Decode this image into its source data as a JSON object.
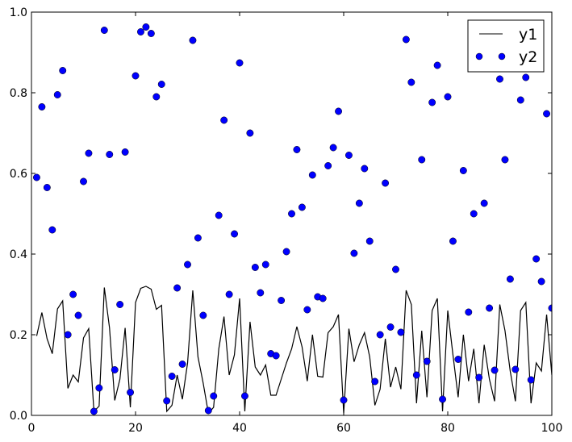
{
  "chart_data": {
    "type": "line+scatter",
    "xlim": [
      0,
      100
    ],
    "ylim": [
      0.0,
      1.0
    ],
    "x_ticks": [
      "0",
      "20",
      "40",
      "60",
      "80",
      "100"
    ],
    "y_ticks": [
      "0.0",
      "0.2",
      "0.4",
      "0.6",
      "0.8",
      "1.0"
    ],
    "grid": false,
    "legend_position": "top-right",
    "colors": {
      "y1": "#000000",
      "y2": "#0000ff"
    },
    "x": [
      1,
      2,
      3,
      4,
      5,
      6,
      7,
      8,
      9,
      10,
      11,
      12,
      13,
      14,
      15,
      16,
      17,
      18,
      19,
      20,
      21,
      22,
      23,
      24,
      25,
      26,
      27,
      28,
      29,
      30,
      31,
      32,
      33,
      34,
      35,
      36,
      37,
      38,
      39,
      40,
      41,
      42,
      43,
      44,
      45,
      46,
      47,
      48,
      49,
      50,
      51,
      52,
      53,
      54,
      55,
      56,
      57,
      58,
      59,
      60,
      61,
      62,
      63,
      64,
      65,
      66,
      67,
      68,
      69,
      70,
      71,
      72,
      73,
      74,
      75,
      76,
      77,
      78,
      79,
      80,
      81,
      82,
      83,
      84,
      85,
      86,
      87,
      88,
      89,
      90,
      91,
      92,
      93,
      94,
      95,
      96,
      97,
      98,
      99,
      100
    ],
    "series": [
      {
        "name": "y1",
        "style": "line",
        "values": [
          0.197,
          0.255,
          0.19,
          0.153,
          0.264,
          0.284,
          0.067,
          0.1,
          0.083,
          0.192,
          0.215,
          0.01,
          0.023,
          0.317,
          0.217,
          0.037,
          0.09,
          0.217,
          0.02,
          0.28,
          0.315,
          0.32,
          0.313,
          0.263,
          0.273,
          0.01,
          0.025,
          0.1,
          0.04,
          0.13,
          0.31,
          0.145,
          0.08,
          0.005,
          0.02,
          0.165,
          0.245,
          0.1,
          0.15,
          0.29,
          0.01,
          0.232,
          0.12,
          0.1,
          0.125,
          0.05,
          0.05,
          0.09,
          0.13,
          0.165,
          0.22,
          0.17,
          0.085,
          0.2,
          0.097,
          0.095,
          0.205,
          0.22,
          0.25,
          0.005,
          0.215,
          0.133,
          0.175,
          0.205,
          0.145,
          0.025,
          0.065,
          0.19,
          0.07,
          0.12,
          0.065,
          0.31,
          0.275,
          0.03,
          0.21,
          0.045,
          0.26,
          0.29,
          0.01,
          0.26,
          0.15,
          0.045,
          0.2,
          0.085,
          0.165,
          0.03,
          0.175,
          0.09,
          0.035,
          0.275,
          0.21,
          0.11,
          0.035,
          0.26,
          0.28,
          0.03,
          0.13,
          0.11,
          0.25,
          0.1
        ]
      },
      {
        "name": "y2",
        "style": "markers",
        "values": [
          0.59,
          0.765,
          0.565,
          0.46,
          0.795,
          0.855,
          0.2,
          0.3,
          0.248,
          0.58,
          0.65,
          0.01,
          0.068,
          0.955,
          0.647,
          0.113,
          0.275,
          0.653,
          0.057,
          0.842,
          0.951,
          0.963,
          0.947,
          0.79,
          0.821,
          0.036,
          0.097,
          0.316,
          0.127,
          0.374,
          0.93,
          0.44,
          0.248,
          0.012,
          0.048,
          0.496,
          0.732,
          0.3,
          0.45,
          0.874,
          0.048,
          0.7,
          0.367,
          0.304,
          0.374,
          0.153,
          0.148,
          0.285,
          0.406,
          0.5,
          0.659,
          0.516,
          0.262,
          0.596,
          0.294,
          0.29,
          0.619,
          0.664,
          0.754,
          0.038,
          0.645,
          0.402,
          0.526,
          0.612,
          0.432,
          0.084,
          0.2,
          0.576,
          0.219,
          0.362,
          0.206,
          0.932,
          0.826,
          0.1,
          0.634,
          0.134,
          0.776,
          0.868,
          0.04,
          0.79,
          0.432,
          0.139,
          0.607,
          0.256,
          0.5,
          0.094,
          0.526,
          0.266,
          0.112,
          0.834,
          0.634,
          0.338,
          0.114,
          0.782,
          0.838,
          0.088,
          0.388,
          0.332,
          0.748,
          0.266
        ]
      }
    ]
  }
}
